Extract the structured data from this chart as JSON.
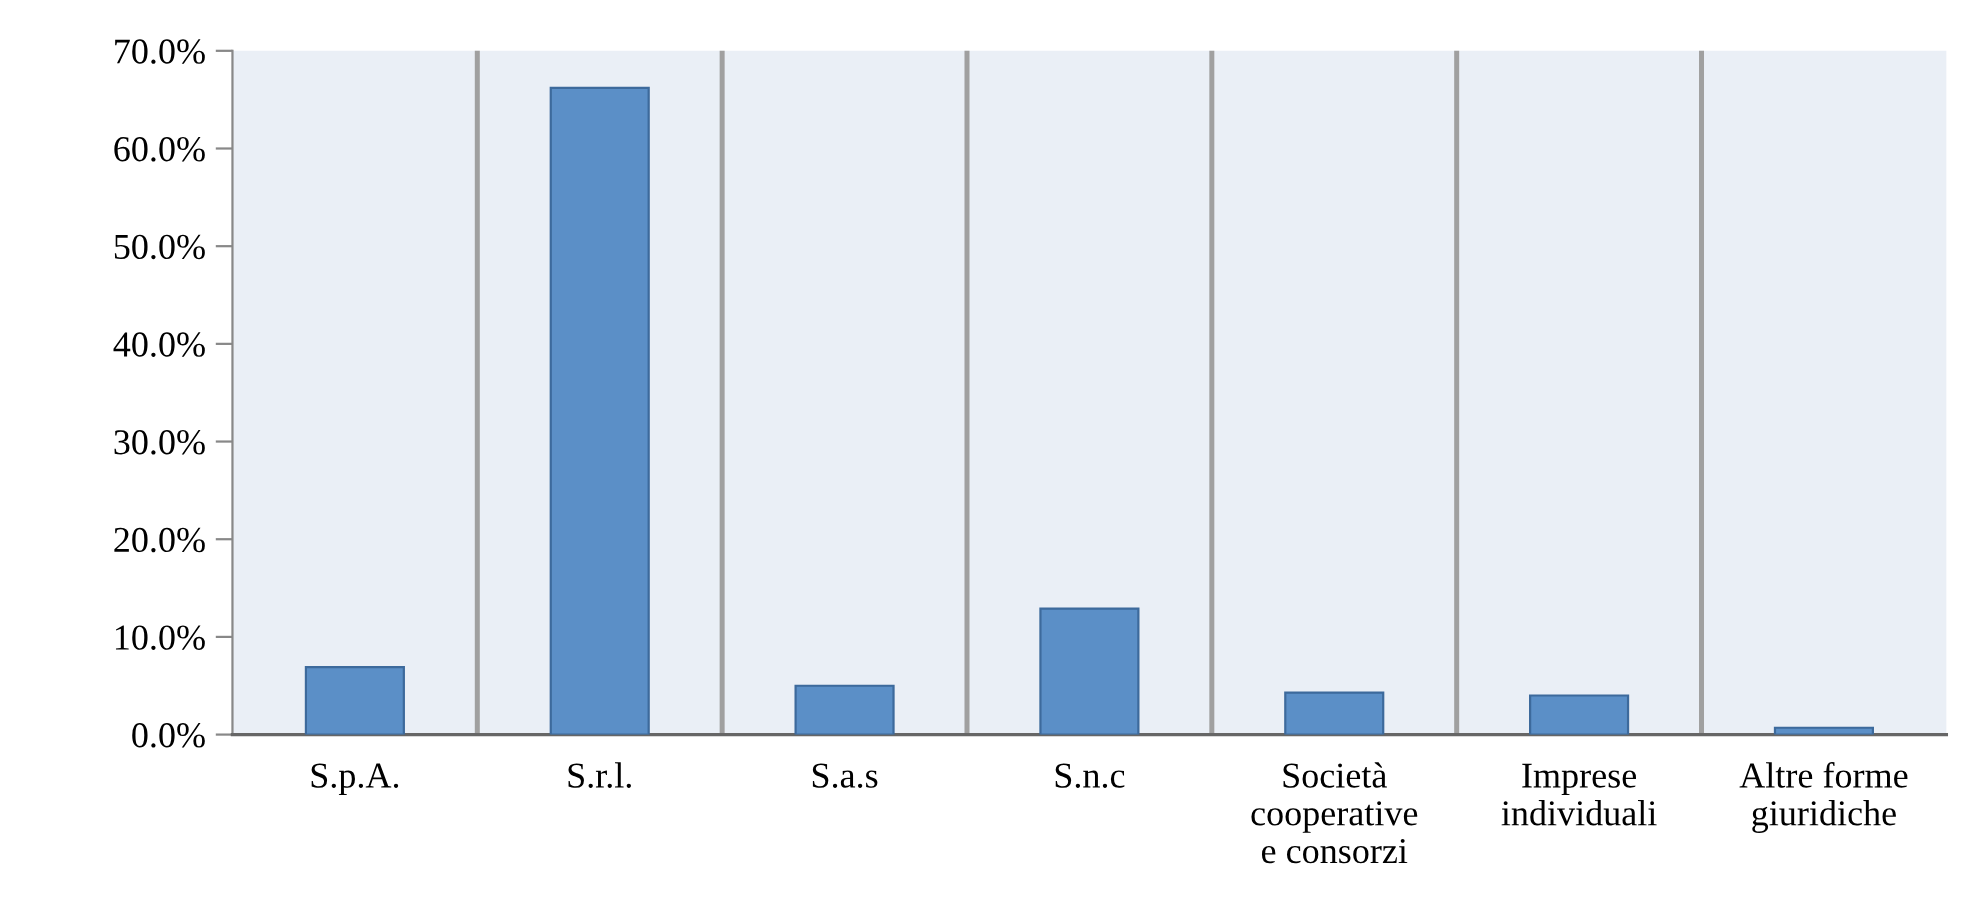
{
  "chart_data": {
    "type": "bar",
    "categories": [
      "S.p.A.",
      "S.r.l.",
      "S.a.s",
      "S.n.c",
      "Società\ncooperative\ne consorzi",
      "Imprese\nindividuali",
      "Altre forme\ngiuridiche"
    ],
    "values": [
      6.9,
      66.2,
      5.0,
      12.9,
      4.3,
      4.0,
      0.7
    ],
    "color": "#5b8fc7",
    "ylim": [
      0,
      70
    ],
    "yticks": [
      {
        "value": 0,
        "label": "0.0%"
      },
      {
        "value": 10,
        "label": "10.0%"
      },
      {
        "value": 20,
        "label": "20.0%"
      },
      {
        "value": 30,
        "label": "30.0%"
      },
      {
        "value": 40,
        "label": "40.0%"
      },
      {
        "value": 50,
        "label": "50.0%"
      },
      {
        "value": 60,
        "label": "60.0%"
      },
      {
        "value": 70,
        "label": "70.0%"
      }
    ],
    "grid": "x"
  }
}
